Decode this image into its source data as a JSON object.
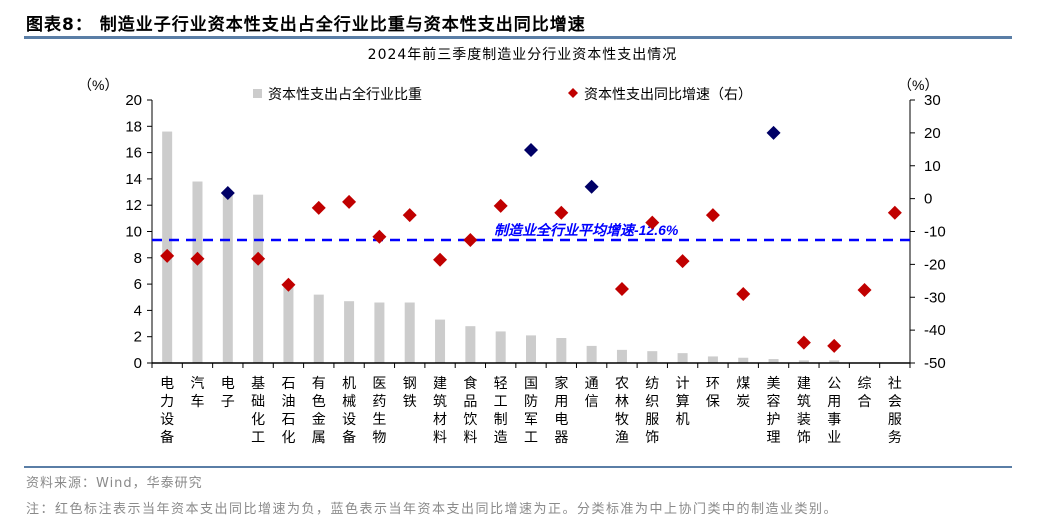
{
  "header": {
    "figure_title": "图表8：  制造业子行业资本性支出占全行业比重与资本性支出同比增速",
    "subtitle": "2024年前三季度制造业分行业资本性支出情况"
  },
  "footer": {
    "source": "资料来源：Wind，华泰研究",
    "note": "注：红色标注表示当年资本支出同比增速为负，蓝色表示当年资本支出同比增速为正。分类标准为中上协门类中的制造业类别。"
  },
  "colors": {
    "bar": "#cccccc",
    "negative_marker": "#c00000",
    "positive_marker": "#000066",
    "average_line": "#0000ff",
    "rule": "#5a7ea6"
  },
  "chart_data": {
    "type": "bar",
    "title": "2024年前三季度制造业分行业资本性支出情况",
    "xlabel": "",
    "ylabel": "(%)",
    "ylabel_right": "(%)",
    "ylim": [
      0,
      20
    ],
    "yticks": [
      0,
      2,
      4,
      6,
      8,
      10,
      12,
      14,
      16,
      18,
      20
    ],
    "ylim_right": [
      -50,
      30
    ],
    "yticks_right": [
      -50,
      -40,
      -30,
      -20,
      -10,
      0,
      10,
      20,
      30
    ],
    "grid": false,
    "legend_position": "top",
    "categories": [
      "电力设备",
      "汽车",
      "电子",
      "基础化工",
      "石油石化",
      "有色金属",
      "机械设备",
      "医药生物",
      "钢铁",
      "建筑材料",
      "食品饮料",
      "轻工制造",
      "国防军工",
      "家用电器",
      "通信",
      "农林牧渔",
      "纺织服饰",
      "计算机",
      "环保",
      "煤炭",
      "美容护理",
      "建筑装饰",
      "公用事业",
      "综合",
      "社会服务"
    ],
    "series": [
      {
        "name": "资本性支出占全行业比重",
        "type": "bar",
        "axis": "left",
        "values": [
          17.6,
          13.8,
          12.9,
          12.8,
          5.9,
          5.2,
          4.7,
          4.6,
          4.6,
          3.3,
          2.8,
          2.4,
          2.1,
          1.9,
          1.3,
          1.0,
          0.9,
          0.75,
          0.5,
          0.4,
          0.3,
          0.2,
          0.2,
          0.05,
          0.05
        ]
      },
      {
        "name": "资本性支出同比增速（右）",
        "type": "scatter",
        "axis": "right",
        "values": [
          -17.4,
          -18.3,
          1.7,
          -18.3,
          -26.2,
          -2.8,
          -1.0,
          -11.6,
          -5.0,
          -18.6,
          -12.6,
          -2.2,
          14.8,
          -4.3,
          3.6,
          -27.5,
          -7.3,
          -19.0,
          -5.0,
          -29.0,
          20.0,
          -43.8,
          -44.8,
          -27.8,
          -4.3
        ]
      }
    ],
    "annotations": [
      {
        "text": "制造业全行业平均增速-12.6%",
        "type": "hline",
        "axis": "right",
        "value": -12.6
      }
    ]
  },
  "axis_labels": {
    "left_unit": "（%）",
    "right_unit": "（%）"
  }
}
